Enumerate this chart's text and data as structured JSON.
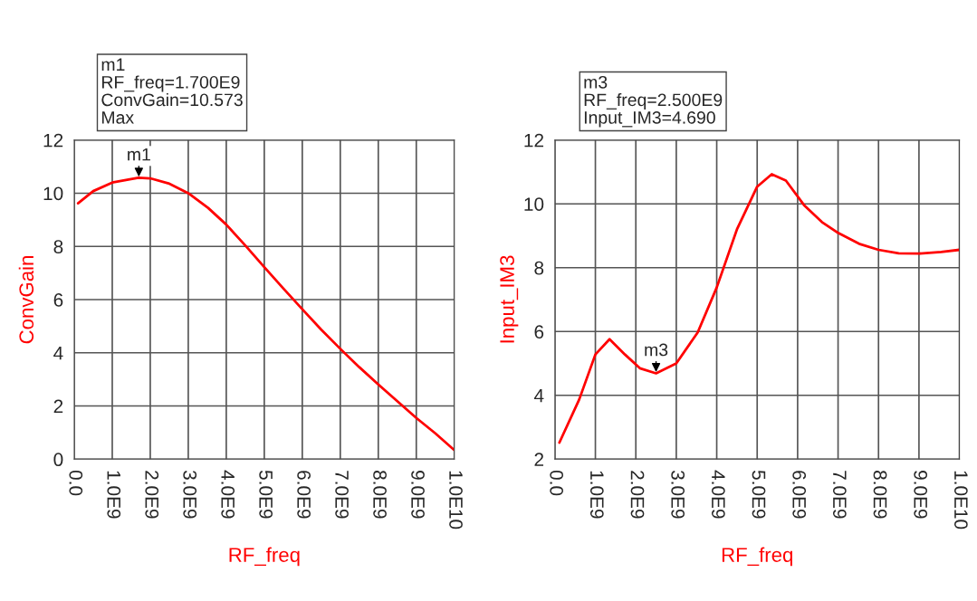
{
  "chart_data": [
    {
      "type": "line",
      "xlabel": "RF_freq",
      "ylabel": "ConvGain",
      "x": [
        100000000,
        500000000,
        1000000000,
        1690000000,
        2000000000,
        2480000000,
        3000000000,
        3520000000,
        4000000000,
        4510000000,
        5000000000,
        5500000000,
        6000000000,
        6500000000,
        7000000000,
        7500000000,
        8000000000,
        8500000000,
        9000000000,
        9500000000,
        10000000000
      ],
      "series": [
        {
          "color": "#ff0000",
          "values": [
            9.62,
            10.08,
            10.4,
            10.58,
            10.56,
            10.37,
            10.0,
            9.45,
            8.82,
            8.02,
            7.22,
            6.42,
            5.64,
            4.87,
            4.15,
            3.46,
            2.81,
            2.18,
            1.55,
            0.97,
            0.34
          ]
        }
      ],
      "xlim": [
        0,
        10000000000
      ],
      "xticks": [
        {
          "value": 0,
          "label": "0.0"
        },
        {
          "value": 1000000000,
          "label": "1.0E9"
        },
        {
          "value": 2000000000,
          "label": "2.0E9"
        },
        {
          "value": 3000000000,
          "label": "3.0E9"
        },
        {
          "value": 4000000000,
          "label": "4.0E9"
        },
        {
          "value": 5000000000,
          "label": "5.0E9"
        },
        {
          "value": 6000000000,
          "label": "6.0E9"
        },
        {
          "value": 7000000000,
          "label": "7.0E9"
        },
        {
          "value": 8000000000,
          "label": "8.0E9"
        },
        {
          "value": 9000000000,
          "label": "9.0E9"
        },
        {
          "value": 10000000000,
          "label": "1.0E10"
        }
      ],
      "ylim": [
        0,
        12
      ],
      "yticks": [
        0,
        2,
        4,
        6,
        8,
        10,
        12
      ],
      "grid": true,
      "legend": false,
      "annotations": [
        {
          "text": "m1",
          "x": 1700000000,
          "y": 10.573
        },
        "m1\nRF_freq=1.700E9\nConvGain=10.573\nMax"
      ]
    },
    {
      "type": "line",
      "xlabel": "RF_freq",
      "ylabel": "Input_IM3",
      "x": [
        110000000,
        600000000,
        1000000000,
        1350000000,
        1730000000,
        2100000000,
        2500000000,
        3000000000,
        3530000000,
        4000000000,
        4500000000,
        5000000000,
        5360000000,
        5710000000,
        6160000000,
        6600000000,
        7000000000,
        7520000000,
        8000000000,
        8500000000,
        9000000000,
        9550000000,
        10000000000
      ],
      "series": [
        {
          "color": "#ff0000",
          "values": [
            2.52,
            3.87,
            5.28,
            5.76,
            5.28,
            4.85,
            4.69,
            5.0,
            5.97,
            7.38,
            9.2,
            10.54,
            10.93,
            10.73,
            9.96,
            9.43,
            9.09,
            8.75,
            8.56,
            8.45,
            8.44,
            8.49,
            8.56
          ]
        }
      ],
      "xlim": [
        0,
        10000000000
      ],
      "xticks": [
        {
          "value": 0,
          "label": "0.0"
        },
        {
          "value": 1000000000,
          "label": "1.0E9"
        },
        {
          "value": 2000000000,
          "label": "2.0E9"
        },
        {
          "value": 3000000000,
          "label": "3.0E9"
        },
        {
          "value": 4000000000,
          "label": "4.0E9"
        },
        {
          "value": 5000000000,
          "label": "5.0E9"
        },
        {
          "value": 6000000000,
          "label": "6.0E9"
        },
        {
          "value": 7000000000,
          "label": "7.0E9"
        },
        {
          "value": 8000000000,
          "label": "8.0E9"
        },
        {
          "value": 9000000000,
          "label": "9.0E9"
        },
        {
          "value": 10000000000,
          "label": "1.0E10"
        }
      ],
      "ylim": [
        2,
        12
      ],
      "yticks": [
        2,
        4,
        6,
        8,
        10,
        12
      ],
      "grid": true,
      "legend": false,
      "annotations": [
        {
          "text": "m3",
          "x": 2500000000,
          "y": 4.69
        },
        "m3\nRF_freq=2.500E9\nInput_IM3=4.690"
      ]
    }
  ]
}
